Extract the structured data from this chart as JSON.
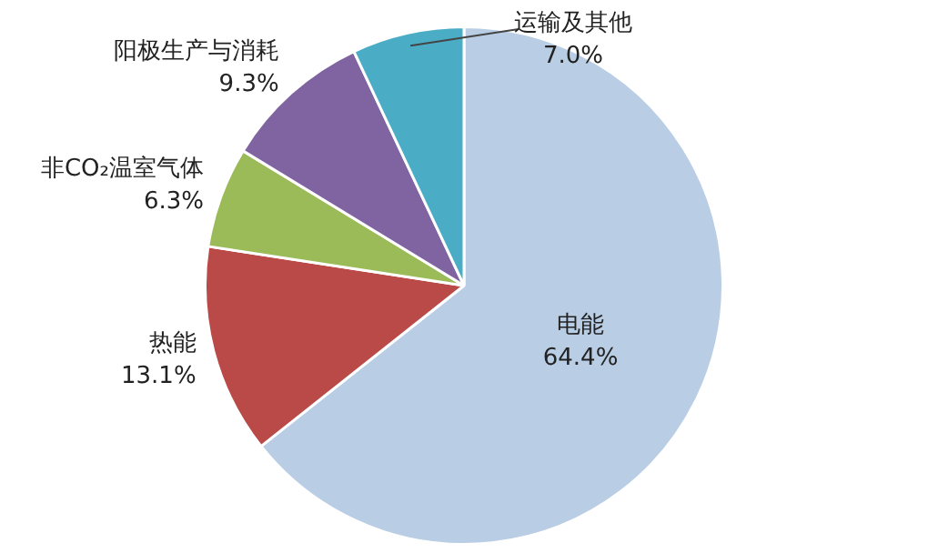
{
  "chart_data": {
    "type": "pie",
    "categories": [
      "电能",
      "热能",
      "非CO₂温室气体",
      "阳极生产与消耗",
      "运输及其他"
    ],
    "values": [
      64.4,
      13.1,
      6.3,
      9.3,
      7.0
    ],
    "value_labels": [
      "64.4%",
      "13.1%",
      "6.3%",
      "9.3%",
      "7.0%"
    ],
    "colors": [
      "#b9cde5",
      "#b94a48",
      "#9bbb59",
      "#8064a2",
      "#4bacc6"
    ],
    "legend": false
  }
}
